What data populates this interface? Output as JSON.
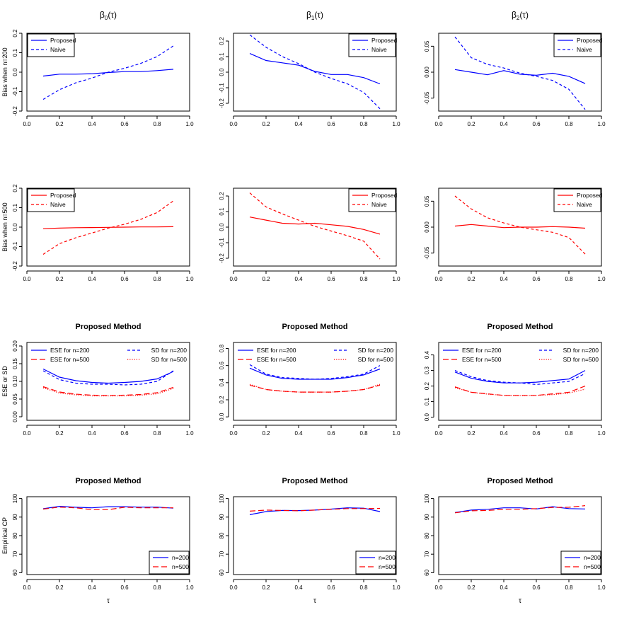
{
  "col_titles": [
    {
      "base": "β",
      "sub": "0",
      "arg": "(τ)"
    },
    {
      "base": "β",
      "sub": "1",
      "arg": "(τ)"
    },
    {
      "base": "β",
      "sub": "2",
      "arg": "(τ)"
    }
  ],
  "row_ylabels": [
    "Bias when n=200",
    "Bias when n=500",
    "ESE or SD",
    "Empirical CP"
  ],
  "row_titles": [
    "",
    "",
    "Proposed Method",
    "Proposed Method"
  ],
  "xlabel": "τ",
  "colors": {
    "blue": "#0000ff",
    "red": "#ff0000",
    "axis": "#000000"
  },
  "chart_data": [
    {
      "id": "bias200-b0",
      "type": "line",
      "title": "",
      "xlabel": "",
      "ylabel": "Bias when n=200",
      "xlim": [
        0,
        1
      ],
      "ylim": [
        -0.2,
        0.2
      ],
      "yticks": [
        "-0.2",
        "-0.1",
        "0.0",
        "0.1",
        "0.2"
      ],
      "x": [
        0.1,
        0.2,
        0.3,
        0.4,
        0.5,
        0.6,
        0.7,
        0.8,
        0.9
      ],
      "legend": {
        "position": "top-left",
        "entries": [
          "Proposed",
          "Naive"
        ]
      },
      "series": [
        {
          "name": "Proposed",
          "color": "#0000ff",
          "style": "solid",
          "values": [
            -0.02,
            -0.01,
            -0.01,
            -0.008,
            -0.002,
            0.003,
            0.003,
            0.008,
            0.015
          ]
        },
        {
          "name": "Naive",
          "color": "#0000ff",
          "style": "dashed",
          "values": [
            -0.14,
            -0.09,
            -0.055,
            -0.03,
            0.0,
            0.02,
            0.045,
            0.08,
            0.135
          ]
        }
      ]
    },
    {
      "id": "bias200-b1",
      "type": "line",
      "title": "",
      "xlabel": "",
      "ylabel": "",
      "xlim": [
        0,
        1
      ],
      "ylim": [
        -0.25,
        0.25
      ],
      "yticks": [
        "-0.2",
        "-0.1",
        "0.0",
        "0.1",
        "0.2"
      ],
      "x": [
        0.1,
        0.2,
        0.3,
        0.4,
        0.5,
        0.6,
        0.7,
        0.8,
        0.9
      ],
      "legend": {
        "position": "top-right",
        "entries": [
          "Proposed",
          "Naive"
        ]
      },
      "series": [
        {
          "name": "Proposed",
          "color": "#0000ff",
          "style": "solid",
          "values": [
            0.12,
            0.075,
            0.06,
            0.045,
            0.005,
            -0.015,
            -0.015,
            -0.035,
            -0.075
          ]
        },
        {
          "name": "Naive",
          "color": "#0000ff",
          "style": "dashed",
          "values": [
            0.24,
            0.16,
            0.1,
            0.055,
            0.0,
            -0.04,
            -0.075,
            -0.13,
            -0.235
          ]
        }
      ]
    },
    {
      "id": "bias200-b2",
      "type": "line",
      "title": "",
      "xlabel": "",
      "ylabel": "",
      "xlim": [
        0,
        1
      ],
      "ylim": [
        -0.075,
        0.075
      ],
      "yticks": [
        "-0.05",
        "0.00",
        "0.05"
      ],
      "x": [
        0.1,
        0.2,
        0.3,
        0.4,
        0.5,
        0.6,
        0.7,
        0.8,
        0.9
      ],
      "legend": {
        "position": "top-right",
        "entries": [
          "Proposed",
          "Naive"
        ]
      },
      "series": [
        {
          "name": "Proposed",
          "color": "#0000ff",
          "style": "solid",
          "values": [
            0.005,
            0.0,
            -0.005,
            0.003,
            -0.004,
            -0.006,
            -0.002,
            -0.008,
            -0.022
          ]
        },
        {
          "name": "Naive",
          "color": "#0000ff",
          "style": "dashed",
          "values": [
            0.068,
            0.028,
            0.015,
            0.008,
            -0.002,
            -0.008,
            -0.016,
            -0.033,
            -0.072
          ]
        }
      ]
    },
    {
      "id": "bias500-b0",
      "type": "line",
      "title": "",
      "xlabel": "",
      "ylabel": "Bias when n=500",
      "xlim": [
        0,
        1
      ],
      "ylim": [
        -0.2,
        0.2
      ],
      "yticks": [
        "-0.2",
        "-0.1",
        "0.0",
        "0.1",
        "0.2"
      ],
      "x": [
        0.1,
        0.2,
        0.3,
        0.4,
        0.5,
        0.6,
        0.7,
        0.8,
        0.9
      ],
      "legend": {
        "position": "top-left",
        "entries": [
          "Proposed",
          "Naive"
        ]
      },
      "series": [
        {
          "name": "Proposed",
          "color": "#ff0000",
          "style": "solid",
          "values": [
            -0.008,
            -0.005,
            -0.003,
            -0.002,
            -0.001,
            0.0,
            0.001,
            0.001,
            0.002
          ]
        },
        {
          "name": "Naive",
          "color": "#ff0000",
          "style": "dashed",
          "values": [
            -0.14,
            -0.085,
            -0.055,
            -0.03,
            -0.005,
            0.015,
            0.04,
            0.075,
            0.135
          ]
        }
      ]
    },
    {
      "id": "bias500-b1",
      "type": "line",
      "title": "",
      "xlabel": "",
      "ylabel": "",
      "xlim": [
        0,
        1
      ],
      "ylim": [
        -0.25,
        0.25
      ],
      "yticks": [
        "-0.2",
        "-0.1",
        "0.0",
        "0.1",
        "0.2"
      ],
      "x": [
        0.1,
        0.2,
        0.3,
        0.4,
        0.5,
        0.6,
        0.7,
        0.8,
        0.9
      ],
      "legend": {
        "position": "top-right",
        "entries": [
          "Proposed",
          "Naive"
        ]
      },
      "series": [
        {
          "name": "Proposed",
          "color": "#ff0000",
          "style": "solid",
          "values": [
            0.065,
            0.045,
            0.025,
            0.02,
            0.025,
            0.015,
            0.005,
            -0.015,
            -0.045
          ]
        },
        {
          "name": "Naive",
          "color": "#ff0000",
          "style": "dashed",
          "values": [
            0.22,
            0.13,
            0.085,
            0.045,
            0.005,
            -0.025,
            -0.055,
            -0.09,
            -0.205
          ]
        }
      ]
    },
    {
      "id": "bias500-b2",
      "type": "line",
      "title": "",
      "xlabel": "",
      "ylabel": "",
      "xlim": [
        0,
        1
      ],
      "ylim": [
        -0.075,
        0.075
      ],
      "yticks": [
        "-0.05",
        "0.00",
        "0.05"
      ],
      "x": [
        0.1,
        0.2,
        0.3,
        0.4,
        0.5,
        0.6,
        0.7,
        0.8,
        0.9
      ],
      "legend": {
        "position": "top-right",
        "entries": [
          "Proposed",
          "Naive"
        ]
      },
      "series": [
        {
          "name": "Proposed",
          "color": "#ff0000",
          "style": "solid",
          "values": [
            0.002,
            0.005,
            0.002,
            -0.001,
            0.0,
            0.0,
            0.001,
            0.0,
            -0.002
          ]
        },
        {
          "name": "Naive",
          "color": "#ff0000",
          "style": "dashed",
          "values": [
            0.06,
            0.035,
            0.018,
            0.008,
            0.0,
            -0.005,
            -0.01,
            -0.02,
            -0.052
          ]
        }
      ]
    },
    {
      "id": "se-b0",
      "type": "line",
      "title": "Proposed Method",
      "xlabel": "",
      "ylabel": "ESE or SD",
      "xlim": [
        0,
        1
      ],
      "ylim": [
        -0.01,
        0.21
      ],
      "yticks": [
        "0.00",
        "0.05",
        "0.10",
        "0.15",
        "0.20"
      ],
      "x": [
        0.1,
        0.2,
        0.3,
        0.4,
        0.5,
        0.6,
        0.7,
        0.8,
        0.9
      ],
      "legend": {
        "position": "top",
        "entries": [
          "ESE for n=200",
          "ESE for n=500",
          "SD for n=200",
          "SD for n=500"
        ]
      },
      "series": [
        {
          "name": "ESE for n=200",
          "color": "#0000ff",
          "style": "solid",
          "values": [
            0.135,
            0.112,
            0.102,
            0.097,
            0.095,
            0.097,
            0.1,
            0.107,
            0.128
          ]
        },
        {
          "name": "ESE for n=500",
          "color": "#ff0000",
          "style": "longdash",
          "values": [
            0.085,
            0.07,
            0.064,
            0.061,
            0.06,
            0.061,
            0.063,
            0.068,
            0.083
          ]
        },
        {
          "name": "SD for n=200",
          "color": "#0000ff",
          "style": "dashed",
          "values": [
            0.13,
            0.105,
            0.095,
            0.092,
            0.092,
            0.09,
            0.092,
            0.1,
            0.13
          ]
        },
        {
          "name": "SD for n=500",
          "color": "#ff0000",
          "style": "dotted",
          "values": [
            0.082,
            0.067,
            0.062,
            0.059,
            0.059,
            0.059,
            0.061,
            0.065,
            0.08
          ]
        }
      ]
    },
    {
      "id": "se-b1",
      "type": "line",
      "title": "Proposed Method",
      "xlabel": "",
      "ylabel": "",
      "xlim": [
        0,
        1
      ],
      "ylim": [
        -0.04,
        0.87
      ],
      "yticks": [
        "0.0",
        "0.2",
        "0.4",
        "0.6",
        "0.8"
      ],
      "x": [
        0.1,
        0.2,
        0.3,
        0.4,
        0.5,
        0.6,
        0.7,
        0.8,
        0.9
      ],
      "legend": {
        "position": "top",
        "entries": [
          "ESE for n=200",
          "ESE for n=500",
          "SD for n=200",
          "SD for n=500"
        ]
      },
      "series": [
        {
          "name": "ESE for n=200",
          "color": "#0000ff",
          "style": "solid",
          "values": [
            0.57,
            0.49,
            0.45,
            0.44,
            0.44,
            0.44,
            0.46,
            0.49,
            0.56
          ]
        },
        {
          "name": "ESE for n=500",
          "color": "#ff0000",
          "style": "longdash",
          "values": [
            0.37,
            0.32,
            0.3,
            0.29,
            0.29,
            0.29,
            0.3,
            0.32,
            0.37
          ]
        },
        {
          "name": "SD for n=200",
          "color": "#0000ff",
          "style": "dashed",
          "values": [
            0.61,
            0.5,
            0.46,
            0.45,
            0.44,
            0.45,
            0.47,
            0.5,
            0.6
          ]
        },
        {
          "name": "SD for n=500",
          "color": "#ff0000",
          "style": "dotted",
          "values": [
            0.38,
            0.32,
            0.3,
            0.29,
            0.29,
            0.29,
            0.3,
            0.32,
            0.38
          ]
        }
      ]
    },
    {
      "id": "se-b2",
      "type": "line",
      "title": "Proposed Method",
      "xlabel": "",
      "ylabel": "",
      "xlim": [
        0,
        1
      ],
      "ylim": [
        -0.02,
        0.48
      ],
      "yticks": [
        "0.0",
        "0.1",
        "0.2",
        "0.3",
        "0.4"
      ],
      "x": [
        0.1,
        0.2,
        0.3,
        0.4,
        0.5,
        0.6,
        0.7,
        0.8,
        0.9
      ],
      "legend": {
        "position": "top",
        "entries": [
          "ESE for n=200",
          "ESE for n=500",
          "SD for n=200",
          "SD for n=500"
        ]
      },
      "series": [
        {
          "name": "ESE for n=200",
          "color": "#0000ff",
          "style": "solid",
          "values": [
            0.29,
            0.25,
            0.23,
            0.22,
            0.22,
            0.225,
            0.235,
            0.245,
            0.3
          ]
        },
        {
          "name": "ESE for n=500",
          "color": "#ff0000",
          "style": "longdash",
          "values": [
            0.195,
            0.16,
            0.15,
            0.14,
            0.14,
            0.14,
            0.15,
            0.16,
            0.2
          ]
        },
        {
          "name": "SD for n=200",
          "color": "#0000ff",
          "style": "dashed",
          "values": [
            0.3,
            0.26,
            0.235,
            0.225,
            0.22,
            0.21,
            0.22,
            0.23,
            0.28
          ]
        },
        {
          "name": "SD for n=500",
          "color": "#ff0000",
          "style": "dotted",
          "values": [
            0.19,
            0.16,
            0.148,
            0.14,
            0.138,
            0.14,
            0.145,
            0.155,
            0.18
          ]
        }
      ]
    },
    {
      "id": "cp-b0",
      "type": "line",
      "title": "Proposed Method",
      "xlabel": "τ",
      "ylabel": "Empirical CP",
      "xlim": [
        0,
        1
      ],
      "ylim": [
        59,
        101
      ],
      "yticks": [
        "60",
        "70",
        "80",
        "90",
        "100"
      ],
      "x": [
        0.1,
        0.2,
        0.3,
        0.4,
        0.5,
        0.6,
        0.7,
        0.8,
        0.9
      ],
      "legend": {
        "position": "bottom-right",
        "entries": [
          "n=200",
          "n=500"
        ]
      },
      "series": [
        {
          "name": "n=200",
          "color": "#0000ff",
          "style": "solid",
          "values": [
            94.5,
            95.8,
            95.3,
            95.0,
            95.6,
            95.6,
            95.4,
            95.4,
            94.8
          ]
        },
        {
          "name": "n=500",
          "color": "#ff0000",
          "style": "longdash",
          "values": [
            94.3,
            95.4,
            95.0,
            94.0,
            94.0,
            95.3,
            95.0,
            95.0,
            95.0
          ]
        }
      ]
    },
    {
      "id": "cp-b1",
      "type": "line",
      "title": "Proposed Method",
      "xlabel": "τ",
      "ylabel": "",
      "xlim": [
        0,
        1
      ],
      "ylim": [
        59,
        101
      ],
      "yticks": [
        "60",
        "70",
        "80",
        "90",
        "100"
      ],
      "x": [
        0.1,
        0.2,
        0.3,
        0.4,
        0.5,
        0.6,
        0.7,
        0.8,
        0.9
      ],
      "legend": {
        "position": "bottom-right",
        "entries": [
          "n=200",
          "n=500"
        ]
      },
      "series": [
        {
          "name": "n=200",
          "color": "#0000ff",
          "style": "solid",
          "values": [
            91.3,
            93.0,
            93.6,
            93.5,
            93.8,
            94.3,
            95.0,
            94.8,
            93.0
          ]
        },
        {
          "name": "n=500",
          "color": "#ff0000",
          "style": "longdash",
          "values": [
            93.2,
            93.8,
            93.6,
            93.4,
            93.8,
            94.2,
            94.6,
            94.6,
            94.7
          ]
        }
      ]
    },
    {
      "id": "cp-b2",
      "type": "line",
      "title": "Proposed Method",
      "xlabel": "τ",
      "ylabel": "",
      "xlim": [
        0,
        1
      ],
      "ylim": [
        59,
        101
      ],
      "yticks": [
        "60",
        "70",
        "80",
        "90",
        "100"
      ],
      "x": [
        0.1,
        0.2,
        0.3,
        0.4,
        0.5,
        0.6,
        0.7,
        0.8,
        0.9
      ],
      "legend": {
        "position": "bottom-right",
        "entries": [
          "n=200",
          "n=500"
        ]
      },
      "series": [
        {
          "name": "n=200",
          "color": "#0000ff",
          "style": "solid",
          "values": [
            92.5,
            93.8,
            94.2,
            95.0,
            95.0,
            94.4,
            95.6,
            94.6,
            94.4
          ]
        },
        {
          "name": "n=500",
          "color": "#ff0000",
          "style": "longdash",
          "values": [
            92.3,
            93.4,
            93.6,
            94.2,
            94.2,
            94.6,
            95.2,
            95.3,
            96.2
          ]
        }
      ]
    }
  ]
}
